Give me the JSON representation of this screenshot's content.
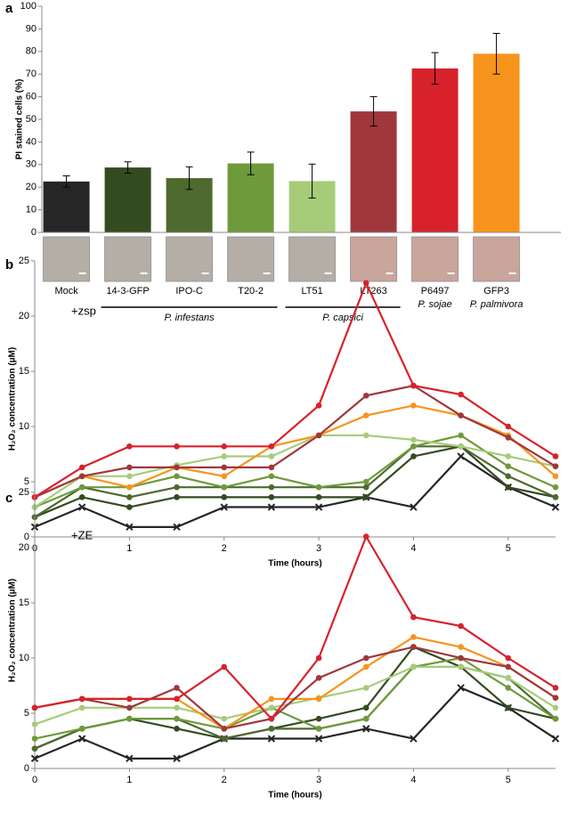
{
  "chart_data": [
    {
      "type": "bar",
      "panel": "a",
      "ylabel": "PI stained cells (%)",
      "categories": [
        "Mock",
        "14-3-GFP",
        "IPO-C",
        "T20-2",
        "LT51",
        "LT263",
        "P6497",
        "GFP3"
      ],
      "values": [
        22.5,
        28.7,
        24,
        30.5,
        22.7,
        53.5,
        72.5,
        79
      ],
      "errors": [
        2.5,
        2.5,
        5,
        5,
        7.5,
        6.5,
        7,
        9
      ],
      "colors": [
        "#262626",
        "#344a1f",
        "#4e6a2e",
        "#6e9a3c",
        "#a6cc7a",
        "#a0373c",
        "#d7222b",
        "#f7941d"
      ],
      "groups": [
        {
          "label": "P. infestans",
          "span": [
            1,
            3
          ]
        },
        {
          "label": "P. capsici",
          "span": [
            4,
            5
          ]
        },
        {
          "label": "P. sojae",
          "span": [
            6,
            6
          ]
        },
        {
          "label": "P. palmivora",
          "span": [
            7,
            7
          ]
        }
      ],
      "ylim": [
        0,
        100
      ],
      "yticks": [
        0,
        10,
        20,
        30,
        40,
        50,
        60,
        70,
        80,
        90,
        100
      ],
      "grid": false
    },
    {
      "type": "line",
      "panel": "b",
      "annotation": "+zsp",
      "ylabel": "H₂O₂ concentration (µM)",
      "xlabel": "Time (hours)",
      "x": [
        0,
        0.5,
        1,
        1.5,
        2,
        2.5,
        3,
        3.5,
        4,
        4.5,
        5,
        5.5
      ],
      "series": [
        {
          "color": "#262626",
          "values": [
            0.9,
            2.7,
            0.9,
            0.9,
            2.7,
            2.7,
            2.7,
            3.6,
            2.7,
            7.3,
            4.5,
            2.7
          ]
        },
        {
          "color": "#344a1f",
          "values": [
            1.8,
            3.6,
            2.7,
            3.6,
            3.6,
            3.6,
            3.6,
            3.6,
            7.3,
            8.2,
            4.5,
            3.6
          ]
        },
        {
          "color": "#4e6a2e",
          "values": [
            1.8,
            4.5,
            3.6,
            4.5,
            4.5,
            4.5,
            4.5,
            4.5,
            8.2,
            8.2,
            5.5,
            3.6
          ]
        },
        {
          "color": "#6e9a3c",
          "values": [
            2.7,
            4.5,
            4.5,
            5.5,
            4.5,
            5.5,
            4.5,
            5,
            8.2,
            9.2,
            6.4,
            4.5
          ]
        },
        {
          "color": "#a6cc7a",
          "values": [
            2.7,
            5.5,
            5.5,
            6.5,
            7.3,
            7.3,
            9.2,
            9.2,
            8.8,
            8.2,
            7.3,
            6.4
          ]
        },
        {
          "color": "#f7941d",
          "values": [
            3.6,
            5.5,
            4.5,
            6.3,
            5.5,
            8.2,
            9.2,
            11,
            11.9,
            11,
            9.2,
            5.5
          ]
        },
        {
          "color": "#a0373c",
          "values": [
            3.6,
            5.5,
            6.3,
            6.3,
            6.3,
            6.3,
            9.2,
            12.8,
            13.7,
            11,
            9,
            6.4
          ]
        },
        {
          "color": "#d7222b",
          "values": [
            3.6,
            6.3,
            8.2,
            8.2,
            8.2,
            8.2,
            11.9,
            23,
            13.7,
            12.9,
            10,
            7.3
          ]
        }
      ],
      "xlim": [
        0,
        5.5
      ],
      "xticks": [
        0,
        1,
        2,
        3,
        4,
        5
      ],
      "ylim": [
        0,
        25
      ],
      "yticks": [
        0,
        5,
        10,
        15,
        20,
        25
      ],
      "grid": false
    },
    {
      "type": "line",
      "panel": "c",
      "annotation": "+ZE",
      "ylabel": "H₂O₂ concentration (µM)",
      "xlabel": "Time (hours)",
      "x": [
        0,
        0.5,
        1,
        1.5,
        2,
        2.5,
        3,
        3.5,
        4,
        4.5,
        5,
        5.5
      ],
      "series": [
        {
          "color": "#262626",
          "values": [
            0.9,
            2.7,
            0.9,
            0.9,
            2.7,
            2.7,
            2.7,
            3.6,
            2.7,
            7.3,
            5.5,
            2.7
          ]
        },
        {
          "color": "#344a1f",
          "values": [
            1.8,
            3.6,
            4.5,
            3.6,
            2.7,
            3.6,
            4.5,
            5.5,
            11,
            9.2,
            5.5,
            4.5
          ]
        },
        {
          "color": "#4e6a2e",
          "values": [
            1.8,
            3.6,
            4.5,
            4.5,
            2.7,
            3.6,
            3.6,
            4.5,
            9.2,
            9.2,
            8.2,
            4.5
          ]
        },
        {
          "color": "#6e9a3c",
          "values": [
            2.7,
            3.6,
            4.5,
            4.5,
            3.6,
            5.5,
            3.6,
            4.5,
            9.2,
            10,
            7.3,
            4.5
          ]
        },
        {
          "color": "#a6cc7a",
          "values": [
            4,
            5.5,
            5.5,
            5.5,
            4.5,
            5.5,
            6.4,
            7.3,
            9.2,
            9.2,
            8.2,
            5.5
          ]
        },
        {
          "color": "#f7941d",
          "values": [
            5.5,
            6.3,
            6.3,
            6.3,
            3.6,
            6.3,
            6.3,
            9.2,
            11.9,
            11,
            9.2,
            6.4
          ]
        },
        {
          "color": "#a0373c",
          "values": [
            5.5,
            6.3,
            5.5,
            7.3,
            3.6,
            4.5,
            8.2,
            10,
            11,
            10,
            9.2,
            6.4
          ]
        },
        {
          "color": "#d7222b",
          "values": [
            5.5,
            6.3,
            6.3,
            6.3,
            9.2,
            4.5,
            10,
            21,
            13.7,
            12.9,
            10,
            7.3
          ]
        }
      ],
      "xlim": [
        0,
        5.5
      ],
      "xticks": [
        0,
        1,
        2,
        3,
        4,
        5
      ],
      "ylim": [
        0,
        25
      ],
      "yticks": [
        0,
        5,
        10,
        15,
        20,
        25
      ],
      "grid": false
    }
  ]
}
